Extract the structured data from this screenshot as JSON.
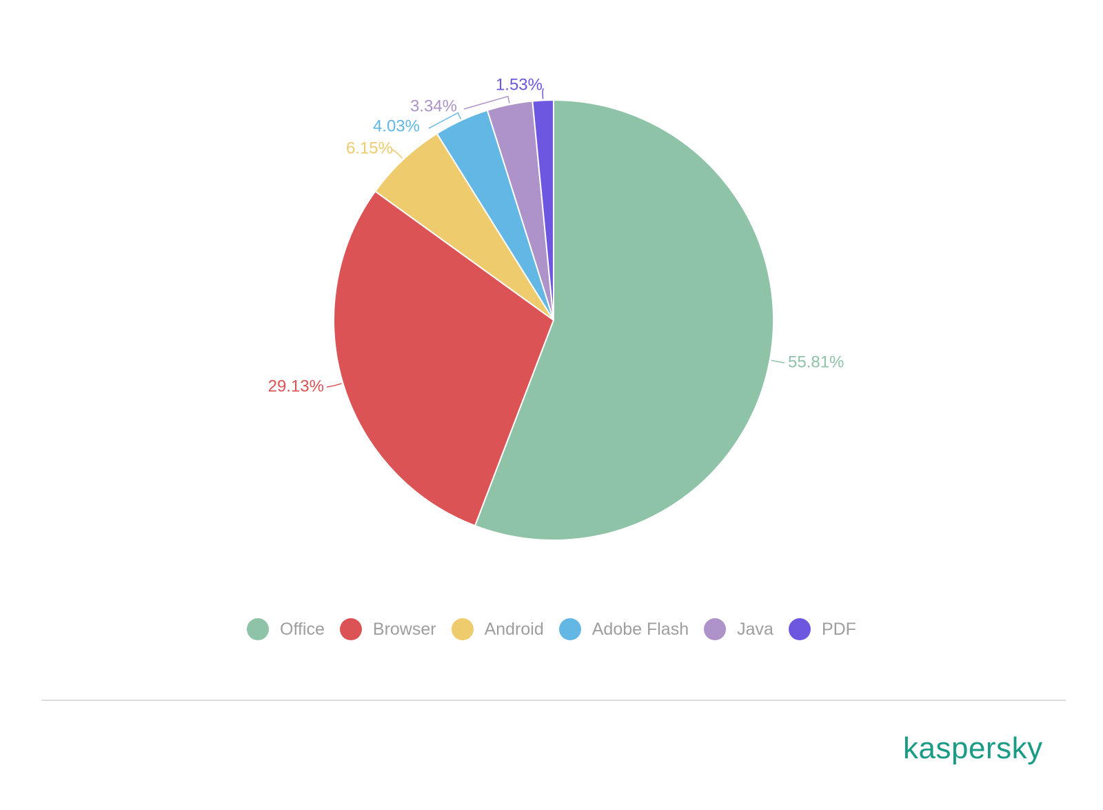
{
  "chart_data": {
    "type": "pie",
    "categories": [
      "Office",
      "Browser",
      "Android",
      "Adobe Flash",
      "Java",
      "PDF"
    ],
    "values": [
      55.81,
      29.13,
      6.15,
      4.03,
      3.34,
      1.53
    ],
    "labels": [
      "55.81%",
      "29.13%",
      "6.15%",
      "4.03%",
      "3.34%",
      "1.53%"
    ],
    "colors": [
      "#8fc3a8",
      "#dc5356",
      "#eecb6c",
      "#62b7e5",
      "#ad93c9",
      "#6e57e0"
    ],
    "legend_position": "bottom",
    "start_angle": "12 o'clock",
    "direction": "clockwise"
  },
  "brand": {
    "logo_text": "kaspersky",
    "logo_color": "#1a9b85"
  }
}
